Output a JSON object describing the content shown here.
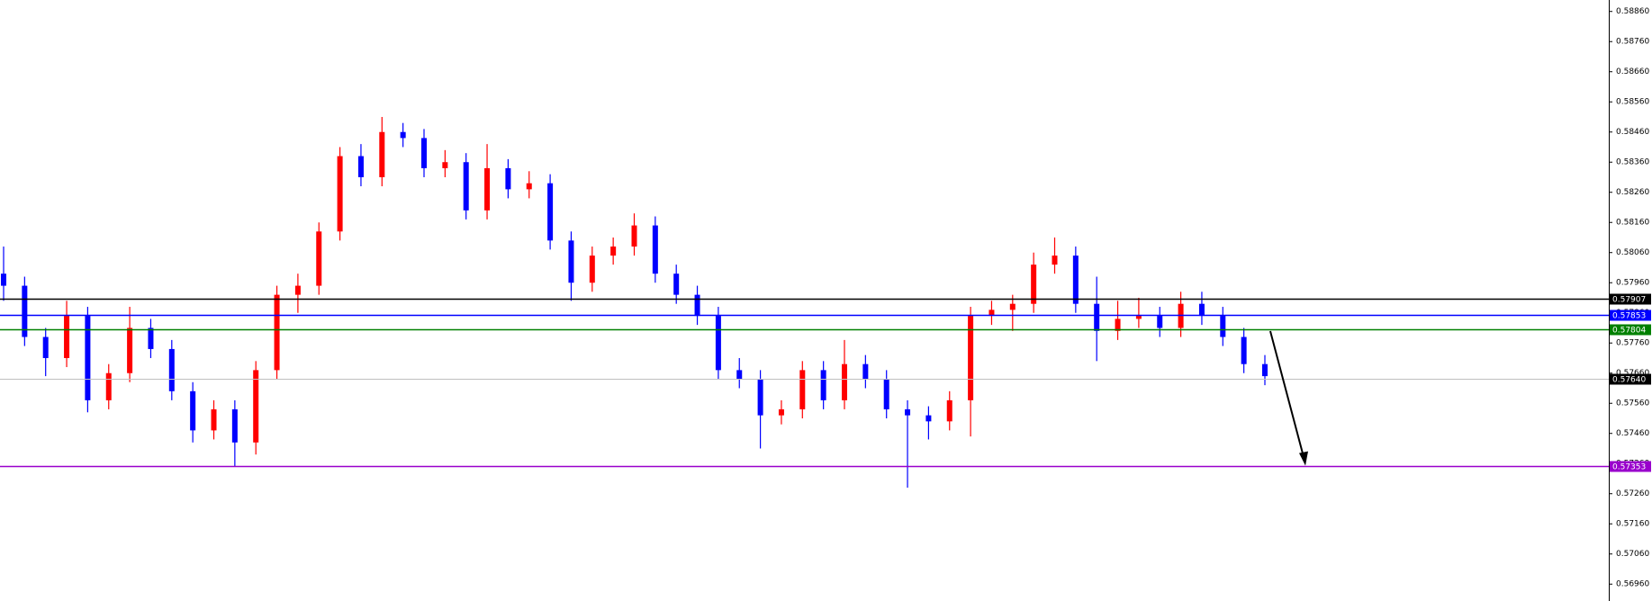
{
  "chart_data": {
    "type": "candlestick",
    "open": [
      0.5799,
      0.5795,
      0.5778,
      0.5771,
      0.5785,
      0.5757,
      0.5766,
      0.5781,
      0.5774,
      0.576,
      0.5747,
      0.5754,
      0.5743,
      0.5767,
      0.5792,
      0.5795,
      0.5813,
      0.5838,
      0.5831,
      0.5846,
      0.5844,
      0.5834,
      0.5836,
      0.582,
      0.5834,
      0.5827,
      0.5829,
      0.581,
      0.5796,
      0.5805,
      0.5808,
      0.5815,
      0.5799,
      0.5792,
      0.5785,
      0.5767,
      0.5764,
      0.5752,
      0.5754,
      0.5767,
      0.5757,
      0.5769,
      0.5764,
      0.5754,
      0.5752,
      0.575,
      0.5757,
      0.5785,
      0.5787,
      0.5789,
      0.5802,
      0.5805,
      0.5789,
      0.578,
      0.5784,
      0.5785,
      0.5781,
      0.5789,
      0.5785,
      0.5778,
      0.5769
    ],
    "high": [
      0.5808,
      0.5798,
      0.5781,
      0.579,
      0.5788,
      0.5769,
      0.5788,
      0.5784,
      0.5777,
      0.5763,
      0.5757,
      0.5757,
      0.577,
      0.5795,
      0.5799,
      0.5816,
      0.5841,
      0.5842,
      0.5851,
      0.5849,
      0.5847,
      0.584,
      0.5839,
      0.5842,
      0.5837,
      0.5833,
      0.5832,
      0.5813,
      0.5808,
      0.5811,
      0.5819,
      0.5818,
      0.5802,
      0.5795,
      0.5788,
      0.5771,
      0.5767,
      0.5757,
      0.577,
      0.577,
      0.5777,
      0.5772,
      0.5767,
      0.5757,
      0.5755,
      0.576,
      0.5788,
      0.579,
      0.5792,
      0.5806,
      0.5811,
      0.5808,
      0.5798,
      0.579,
      0.5791,
      0.5788,
      0.5793,
      0.5793,
      0.5788,
      0.5781,
      0.5772
    ],
    "low": [
      0.579,
      0.5775,
      0.5765,
      0.5768,
      0.5753,
      0.5754,
      0.5763,
      0.5771,
      0.5757,
      0.5743,
      0.5744,
      0.5735,
      0.5739,
      0.5764,
      0.5786,
      0.5792,
      0.581,
      0.5828,
      0.5828,
      0.5841,
      0.5831,
      0.5831,
      0.5817,
      0.5817,
      0.5824,
      0.5824,
      0.5807,
      0.579,
      0.5793,
      0.5802,
      0.5805,
      0.5796,
      0.5789,
      0.5782,
      0.5764,
      0.5761,
      0.5741,
      0.5749,
      0.5751,
      0.5754,
      0.5754,
      0.5761,
      0.5751,
      0.5728,
      0.5744,
      0.5747,
      0.5745,
      0.5782,
      0.578,
      0.5786,
      0.5799,
      0.5786,
      0.577,
      0.5777,
      0.5781,
      0.5778,
      0.5778,
      0.5782,
      0.5775,
      0.5766,
      0.5762
    ],
    "close": [
      0.5795,
      0.5778,
      0.5771,
      0.5785,
      0.5757,
      0.5766,
      0.5781,
      0.5774,
      0.576,
      0.5747,
      0.5754,
      0.5743,
      0.5767,
      0.5792,
      0.5795,
      0.5813,
      0.5838,
      0.5831,
      0.5846,
      0.5844,
      0.5834,
      0.5836,
      0.582,
      0.5834,
      0.5827,
      0.5829,
      0.581,
      0.5796,
      0.5805,
      0.5808,
      0.5815,
      0.5799,
      0.5792,
      0.5785,
      0.5767,
      0.5764,
      0.5752,
      0.5754,
      0.5767,
      0.5757,
      0.5769,
      0.5764,
      0.5754,
      0.5752,
      0.575,
      0.5757,
      0.5785,
      0.5787,
      0.5789,
      0.5802,
      0.5805,
      0.5789,
      0.578,
      0.5784,
      0.5785,
      0.5781,
      0.5789,
      0.5785,
      0.5778,
      0.5769,
      0.5765
    ],
    "up_color": "#ff0000",
    "down_color": "#0000ff",
    "ylim": [
      0.56904,
      0.58898
    ],
    "yticks": [
      {
        "value": 0.5696,
        "label": "0.56960"
      },
      {
        "value": 0.5706,
        "label": "0.57060"
      },
      {
        "value": 0.5716,
        "label": "0.57160"
      },
      {
        "value": 0.5726,
        "label": "0.57260"
      },
      {
        "value": 0.5736,
        "label": "0.57360"
      },
      {
        "value": 0.5746,
        "label": "0.57460"
      },
      {
        "value": 0.5756,
        "label": "0.57560"
      },
      {
        "value": 0.5766,
        "label": "0.57660"
      },
      {
        "value": 0.5776,
        "label": "0.57760"
      },
      {
        "value": 0.5786,
        "label": "0.57860"
      },
      {
        "value": 0.5796,
        "label": "0.57960"
      },
      {
        "value": 0.5806,
        "label": "0.58060"
      },
      {
        "value": 0.5816,
        "label": "0.58160"
      },
      {
        "value": 0.5826,
        "label": "0.58260"
      },
      {
        "value": 0.5836,
        "label": "0.58360"
      },
      {
        "value": 0.5846,
        "label": "0.58460"
      },
      {
        "value": 0.5856,
        "label": "0.58560"
      },
      {
        "value": 0.5866,
        "label": "0.58660"
      },
      {
        "value": 0.5876,
        "label": "0.58760"
      },
      {
        "value": 0.5886,
        "label": "0.58860"
      }
    ],
    "levels": [
      {
        "value": 0.57907,
        "color": "#000000",
        "box": "#000000"
      },
      {
        "value": 0.57853,
        "color": "#0000ff",
        "box": "#0000ff"
      },
      {
        "value": 0.57804,
        "color": "#008000",
        "box": "#008000"
      },
      {
        "value": 0.5764,
        "label": "0.57640",
        "color": "#c0c0c0",
        "box": "#000000"
      },
      {
        "value": 0.57353,
        "color": "#9900cc",
        "box": "#9900cc"
      }
    ]
  }
}
